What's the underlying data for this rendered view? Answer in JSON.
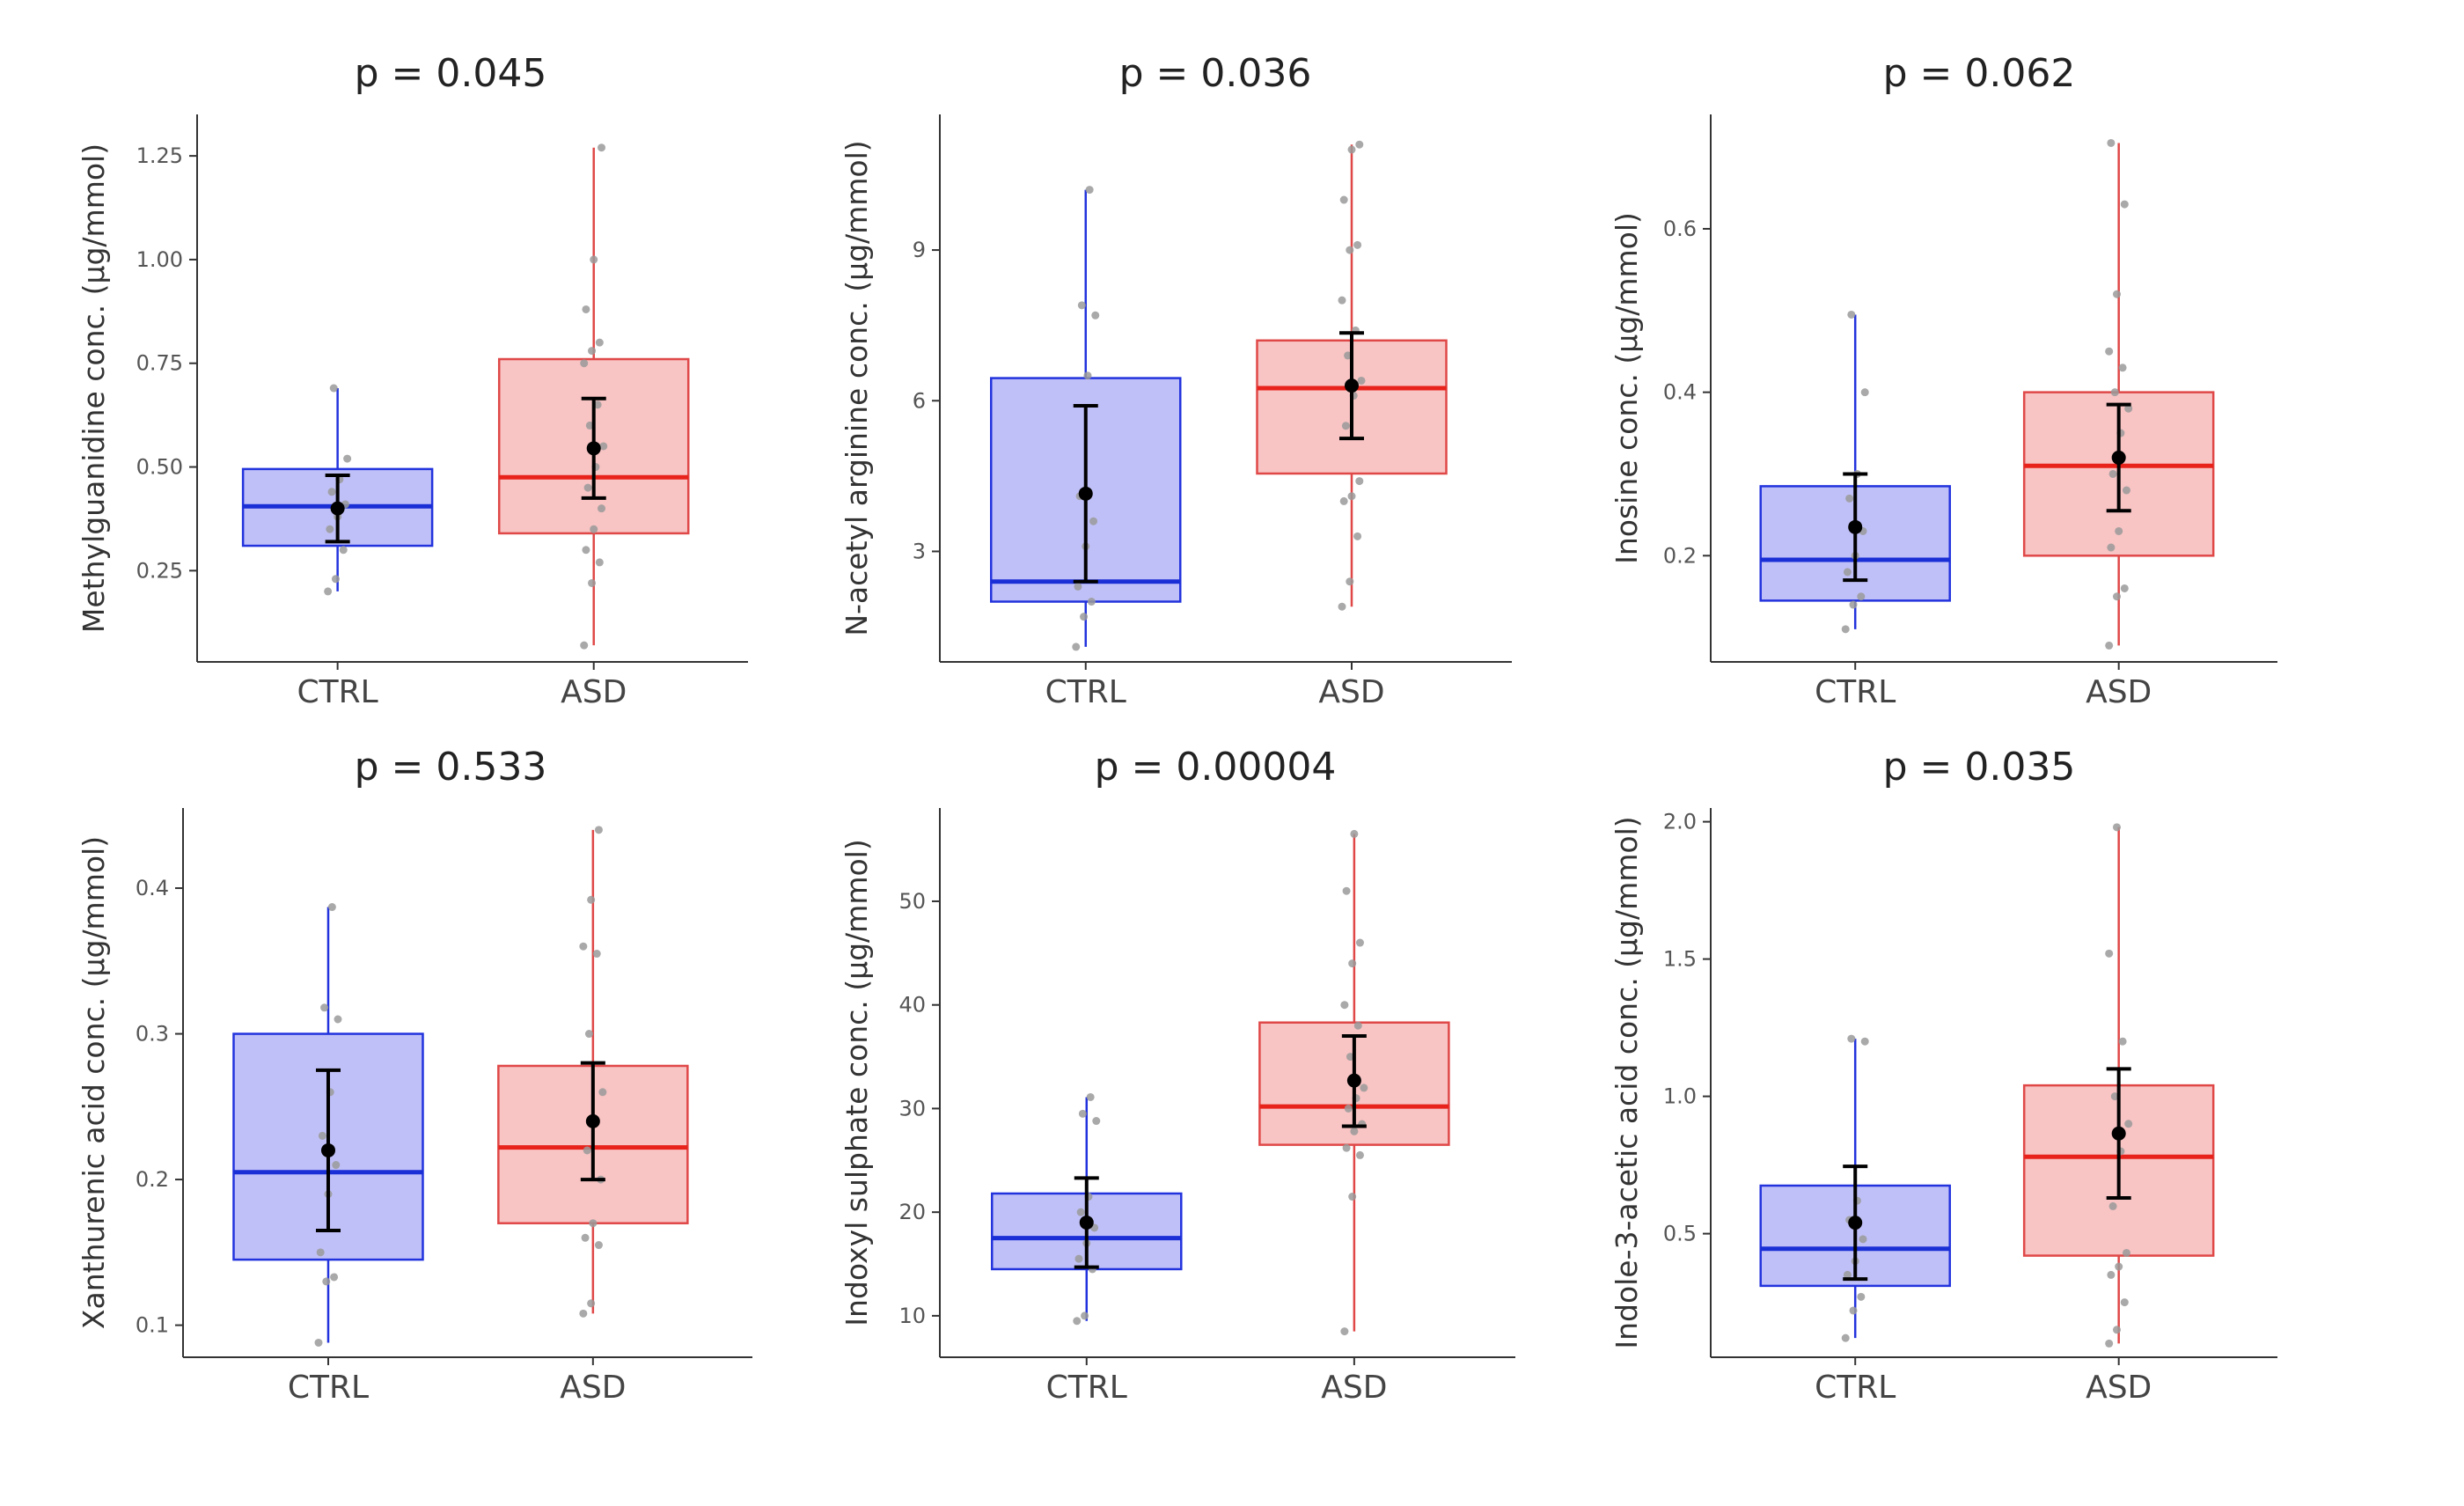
{
  "figure": {
    "description_free": true
  },
  "groups": {
    "ctrl": {
      "label": "CTRL",
      "fill": "#c0c0f8",
      "stroke": "#2233dd",
      "median": "#1a2fd6"
    },
    "asd": {
      "label": "ASD",
      "fill": "#f8c4c4",
      "stroke": "#e04848",
      "median": "#e8231b"
    }
  },
  "colors": {
    "points": "#9a9a9a",
    "mean": "#000000",
    "axis": "#333333"
  },
  "chart_data": [
    {
      "type": "boxplot",
      "title": "p = 0.045",
      "ylabel": "Methylguanidine conc. (µg/mmol)",
      "categories": [
        "CTRL",
        "ASD"
      ],
      "ylim": [
        0.03,
        1.35
      ],
      "yticks": [
        0.25,
        0.5,
        0.75,
        1.0,
        1.25
      ],
      "ytick_labels": [
        "0.25",
        "0.50",
        "0.75",
        "1.00",
        "1.25"
      ],
      "series": [
        {
          "name": "CTRL",
          "min": 0.2,
          "q1": 0.31,
          "median": 0.405,
          "q3": 0.495,
          "max": 0.69,
          "mean": 0.4,
          "mean_lo": 0.32,
          "mean_hi": 0.48,
          "points": [
            0.2,
            0.23,
            0.3,
            0.35,
            0.38,
            0.41,
            0.44,
            0.47,
            0.52,
            0.69
          ]
        },
        {
          "name": "ASD",
          "min": 0.07,
          "q1": 0.34,
          "median": 0.475,
          "q3": 0.76,
          "max": 1.27,
          "mean": 0.545,
          "mean_lo": 0.425,
          "mean_hi": 0.665,
          "points": [
            0.07,
            0.22,
            0.27,
            0.3,
            0.35,
            0.4,
            0.45,
            0.5,
            0.55,
            0.6,
            0.65,
            0.75,
            0.78,
            0.8,
            0.88,
            1.0,
            1.27
          ]
        }
      ]
    },
    {
      "type": "boxplot",
      "title": "p = 0.036",
      "ylabel": "N-acetyl arginine conc. (µg/mmol)",
      "categories": [
        "CTRL",
        "ASD"
      ],
      "ylim": [
        0.8,
        11.7
      ],
      "yticks": [
        3,
        6,
        9
      ],
      "ytick_labels": [
        "3",
        "6",
        "9"
      ],
      "series": [
        {
          "name": "CTRL",
          "min": 1.1,
          "q1": 2.0,
          "median": 2.4,
          "q3": 6.45,
          "max": 10.2,
          "mean": 4.15,
          "mean_lo": 2.4,
          "mean_hi": 5.9,
          "points": [
            1.1,
            1.7,
            2.0,
            2.3,
            3.1,
            3.6,
            4.1,
            6.5,
            7.7,
            7.9,
            10.2
          ]
        },
        {
          "name": "ASD",
          "min": 1.9,
          "q1": 4.55,
          "median": 6.25,
          "q3": 7.2,
          "max": 11.1,
          "mean": 6.3,
          "mean_lo": 5.25,
          "mean_hi": 7.35,
          "points": [
            1.9,
            2.4,
            3.3,
            4.0,
            4.1,
            4.4,
            5.5,
            6.1,
            6.4,
            6.9,
            7.4,
            8.0,
            9.0,
            9.1,
            10.0,
            11.0,
            11.1
          ]
        }
      ]
    },
    {
      "type": "boxplot",
      "title": "p = 0.062",
      "ylabel": "Inosine conc. (µg/mmol)",
      "categories": [
        "CTRL",
        "ASD"
      ],
      "ylim": [
        0.07,
        0.74
      ],
      "yticks": [
        0.2,
        0.4,
        0.6
      ],
      "ytick_labels": [
        "0.2",
        "0.4",
        "0.6"
      ],
      "series": [
        {
          "name": "CTRL",
          "min": 0.11,
          "q1": 0.145,
          "median": 0.195,
          "q3": 0.285,
          "max": 0.495,
          "mean": 0.235,
          "mean_lo": 0.17,
          "mean_hi": 0.3,
          "points": [
            0.11,
            0.14,
            0.15,
            0.18,
            0.2,
            0.23,
            0.27,
            0.3,
            0.4,
            0.495
          ]
        },
        {
          "name": "ASD",
          "min": 0.09,
          "q1": 0.2,
          "median": 0.31,
          "q3": 0.4,
          "max": 0.705,
          "mean": 0.32,
          "mean_lo": 0.255,
          "mean_hi": 0.385,
          "points": [
            0.09,
            0.15,
            0.16,
            0.21,
            0.23,
            0.28,
            0.3,
            0.35,
            0.38,
            0.4,
            0.43,
            0.45,
            0.52,
            0.63,
            0.705
          ]
        }
      ]
    },
    {
      "type": "boxplot",
      "title": "p = 0.533",
      "ylabel": "Xanthurenic acid conc. (µg/mmol)",
      "categories": [
        "CTRL",
        "ASD"
      ],
      "ylim": [
        0.078,
        0.455
      ],
      "yticks": [
        0.1,
        0.2,
        0.3,
        0.4
      ],
      "ytick_labels": [
        "0.1",
        "0.2",
        "0.3",
        "0.4"
      ],
      "series": [
        {
          "name": "CTRL",
          "min": 0.088,
          "q1": 0.145,
          "median": 0.205,
          "q3": 0.3,
          "max": 0.387,
          "mean": 0.22,
          "mean_lo": 0.165,
          "mean_hi": 0.275,
          "points": [
            0.088,
            0.13,
            0.133,
            0.15,
            0.19,
            0.21,
            0.23,
            0.26,
            0.31,
            0.318,
            0.387
          ]
        },
        {
          "name": "ASD",
          "min": 0.108,
          "q1": 0.17,
          "median": 0.222,
          "q3": 0.278,
          "max": 0.44,
          "mean": 0.24,
          "mean_lo": 0.2,
          "mean_hi": 0.28,
          "points": [
            0.108,
            0.115,
            0.155,
            0.16,
            0.17,
            0.2,
            0.22,
            0.24,
            0.26,
            0.3,
            0.355,
            0.36,
            0.392,
            0.44
          ]
        }
      ]
    },
    {
      "type": "boxplot",
      "title": "p = 0.00004",
      "ylabel": "Indoxyl sulphate conc. (µg/mmol)",
      "categories": [
        "CTRL",
        "ASD"
      ],
      "ylim": [
        6.0,
        59.0
      ],
      "yticks": [
        10,
        20,
        30,
        40,
        50
      ],
      "ytick_labels": [
        "10",
        "20",
        "30",
        "40",
        "50"
      ],
      "series": [
        {
          "name": "CTRL",
          "min": 9.5,
          "q1": 14.5,
          "median": 17.5,
          "q3": 21.8,
          "max": 31.1,
          "mean": 19.0,
          "mean_lo": 14.7,
          "mean_hi": 23.3,
          "points": [
            9.5,
            10.0,
            14.5,
            15.5,
            17.0,
            18.5,
            20.0,
            21.5,
            28.8,
            29.5,
            31.1
          ]
        },
        {
          "name": "ASD",
          "min": 8.5,
          "q1": 26.5,
          "median": 30.2,
          "q3": 38.3,
          "max": 56.5,
          "mean": 32.7,
          "mean_lo": 28.3,
          "mean_hi": 37.0,
          "points": [
            8.5,
            21.5,
            25.5,
            26.2,
            27.8,
            28.5,
            30.0,
            31.0,
            32.0,
            35.0,
            38.0,
            40.0,
            44.0,
            46.0,
            51.0,
            56.5
          ]
        }
      ]
    },
    {
      "type": "boxplot",
      "title": "p = 0.035",
      "ylabel": "Indole-3-acetic acid conc. (µg/mmol)",
      "categories": [
        "CTRL",
        "ASD"
      ],
      "ylim": [
        0.05,
        2.05
      ],
      "yticks": [
        0.5,
        1.0,
        1.5,
        2.0
      ],
      "ytick_labels": [
        "0.5",
        "1.0",
        "1.5",
        "2.0"
      ],
      "series": [
        {
          "name": "CTRL",
          "min": 0.12,
          "q1": 0.31,
          "median": 0.445,
          "q3": 0.675,
          "max": 1.21,
          "mean": 0.54,
          "mean_lo": 0.335,
          "mean_hi": 0.745,
          "points": [
            0.12,
            0.22,
            0.27,
            0.35,
            0.4,
            0.48,
            0.55,
            0.62,
            1.2,
            1.21
          ]
        },
        {
          "name": "ASD",
          "min": 0.1,
          "q1": 0.42,
          "median": 0.78,
          "q3": 1.04,
          "max": 1.98,
          "mean": 0.865,
          "mean_lo": 0.63,
          "mean_hi": 1.1,
          "points": [
            0.1,
            0.15,
            0.25,
            0.35,
            0.38,
            0.43,
            0.6,
            0.8,
            0.9,
            1.0,
            1.2,
            1.52,
            1.98
          ]
        }
      ]
    }
  ]
}
